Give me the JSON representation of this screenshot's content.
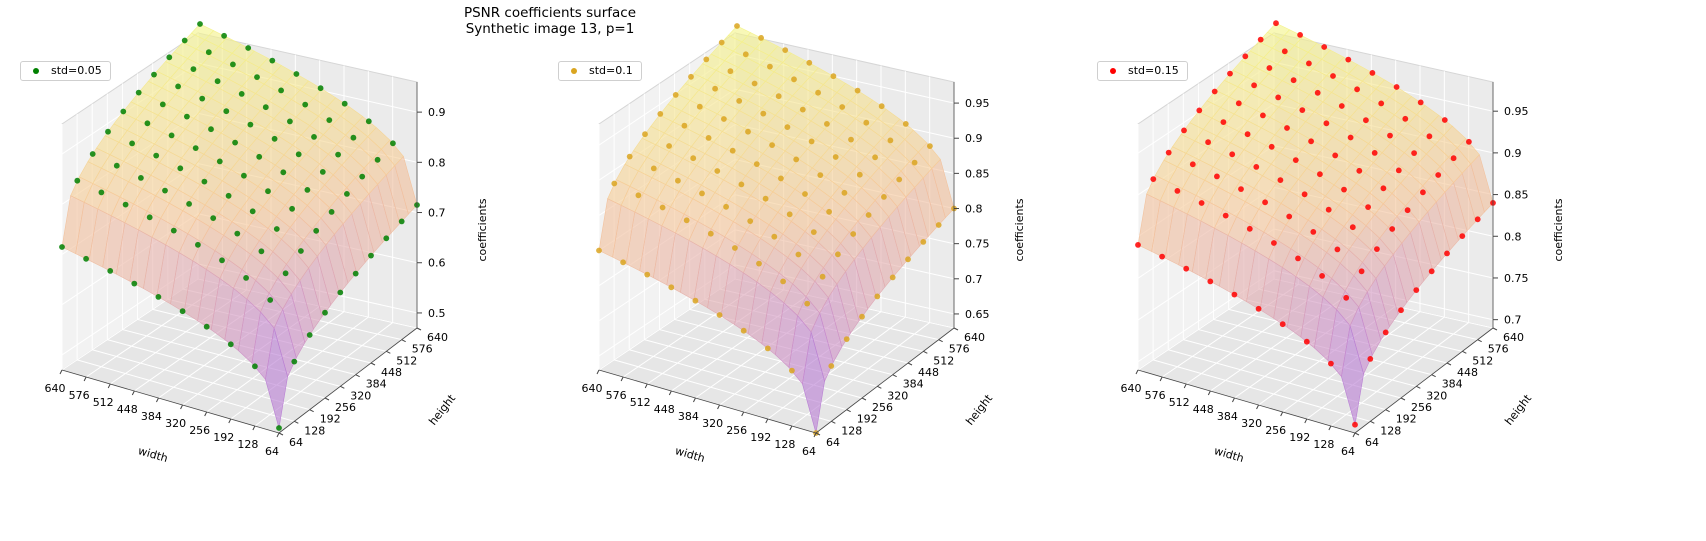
{
  "figure": {
    "title_line1": "PSNR coefficients surface",
    "title_line2": "Synthetic image 13, p=1"
  },
  "chart_data": [
    {
      "type": "scatter3d+surface",
      "legend": "std=0.05",
      "color": "#008000",
      "xlabel": "width",
      "ylabel": "height",
      "zlabel": "coefficients",
      "x_ticks": [
        640,
        576,
        512,
        448,
        384,
        320,
        256,
        192,
        128,
        64
      ],
      "y_ticks": [
        64,
        128,
        192,
        256,
        320,
        384,
        448,
        512,
        576,
        640
      ],
      "z_ticks": [
        0.5,
        0.6,
        0.7,
        0.8,
        0.9
      ],
      "zlim": [
        0.47,
        0.96
      ],
      "grid": [
        64,
        128,
        192,
        256,
        320,
        384,
        448,
        512,
        576,
        640
      ],
      "z_min": 0.48,
      "z_max": 0.95,
      "surface_colormap": [
        "#6f5bd8",
        "#c284d4",
        "#f6c79a",
        "#f4f48a"
      ]
    },
    {
      "type": "scatter3d+surface",
      "legend": "std=0.1",
      "color": "#daa520",
      "xlabel": "width",
      "ylabel": "height",
      "zlabel": "coefficients",
      "x_ticks": [
        640,
        576,
        512,
        448,
        384,
        320,
        256,
        192,
        128,
        64
      ],
      "y_ticks": [
        64,
        128,
        192,
        256,
        320,
        384,
        448,
        512,
        576,
        640
      ],
      "z_ticks": [
        0.65,
        0.7,
        0.75,
        0.8,
        0.85,
        0.9,
        0.95
      ],
      "zlim": [
        0.63,
        0.98
      ],
      "grid": [
        64,
        128,
        192,
        256,
        320,
        384,
        448,
        512,
        576,
        640
      ],
      "z_min": 0.63,
      "z_max": 0.97,
      "surface_colormap": [
        "#6f5bd8",
        "#c284d4",
        "#f6c79a",
        "#f4f48a"
      ]
    },
    {
      "type": "scatter3d+surface",
      "legend": "std=0.15",
      "color": "#ff0000",
      "xlabel": "width",
      "ylabel": "height",
      "zlabel": "coefficients",
      "x_ticks": [
        640,
        576,
        512,
        448,
        384,
        320,
        256,
        192,
        128,
        64
      ],
      "y_ticks": [
        64,
        128,
        192,
        256,
        320,
        384,
        448,
        512,
        576,
        640
      ],
      "z_ticks": [
        0.7,
        0.75,
        0.8,
        0.85,
        0.9,
        0.95
      ],
      "zlim": [
        0.69,
        0.985
      ],
      "grid": [
        64,
        128,
        192,
        256,
        320,
        384,
        448,
        512,
        576,
        640
      ],
      "z_min": 0.7,
      "z_max": 0.98,
      "surface_colormap": [
        "#6f5bd8",
        "#c284d4",
        "#f6c79a",
        "#f4f48a"
      ]
    }
  ]
}
